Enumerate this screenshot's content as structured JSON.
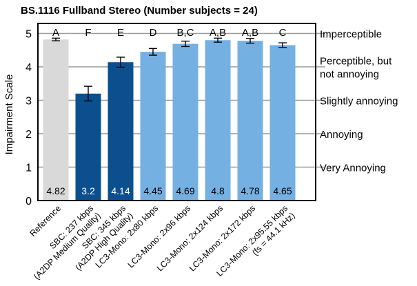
{
  "chart_data": {
    "type": "bar",
    "title": "BS.1116 Fullband Stereo (Number subjects = 24)",
    "ylabel": "Impairment Scale",
    "xlabel": "",
    "ylim": [
      0,
      5.3
    ],
    "yticks": [
      0,
      1,
      2,
      3,
      4,
      5
    ],
    "grid": "horizontal",
    "categories": [
      [
        "Reference"
      ],
      [
        "SBC: 237 kbps",
        "(A2DP Medium Quality)"
      ],
      [
        "SBC: 345 kbps",
        "(A2DP High Quality)"
      ],
      [
        "LC3-Mono: 2x80 kbps"
      ],
      [
        "LC3-Mono: 2x96 kbps"
      ],
      [
        "LC3-Mono: 2x124 kbps"
      ],
      [
        "LC3-Mono: 2x172 kbps"
      ],
      [
        "LC3-Mono: 2x95.55 kbps",
        "(fs = 44.1 kHz)"
      ]
    ],
    "values": [
      4.82,
      3.2,
      4.14,
      4.45,
      4.69,
      4.8,
      4.78,
      4.65
    ],
    "value_labels": [
      "4.82",
      "3.2",
      "4.14",
      "4.45",
      "4.69",
      "4.8",
      "4.78",
      "4.65"
    ],
    "error_bars": [
      0.04,
      0.22,
      0.15,
      0.1,
      0.08,
      0.06,
      0.07,
      0.07
    ],
    "group_labels": [
      "A",
      "F",
      "E",
      "D",
      "B,C",
      "A,B",
      "A,B",
      "C"
    ],
    "bar_colors": [
      "#d9d9d9",
      "#0b4f8f",
      "#0b4f8f",
      "#74b0e2",
      "#74b0e2",
      "#74b0e2",
      "#74b0e2",
      "#74b0e2"
    ],
    "value_label_colors": [
      "#000000",
      "#ffffff",
      "#ffffff",
      "#000000",
      "#000000",
      "#000000",
      "#000000",
      "#000000"
    ],
    "scale_labels": [
      {
        "y": 5,
        "lines": [
          "Imperceptible"
        ]
      },
      {
        "y": 4,
        "lines": [
          "Perceptible, but",
          "not annoying"
        ]
      },
      {
        "y": 3,
        "lines": [
          "Slightly annoying"
        ]
      },
      {
        "y": 2,
        "lines": [
          "Annoying"
        ]
      },
      {
        "y": 1,
        "lines": [
          "Very Annoying"
        ]
      }
    ]
  }
}
